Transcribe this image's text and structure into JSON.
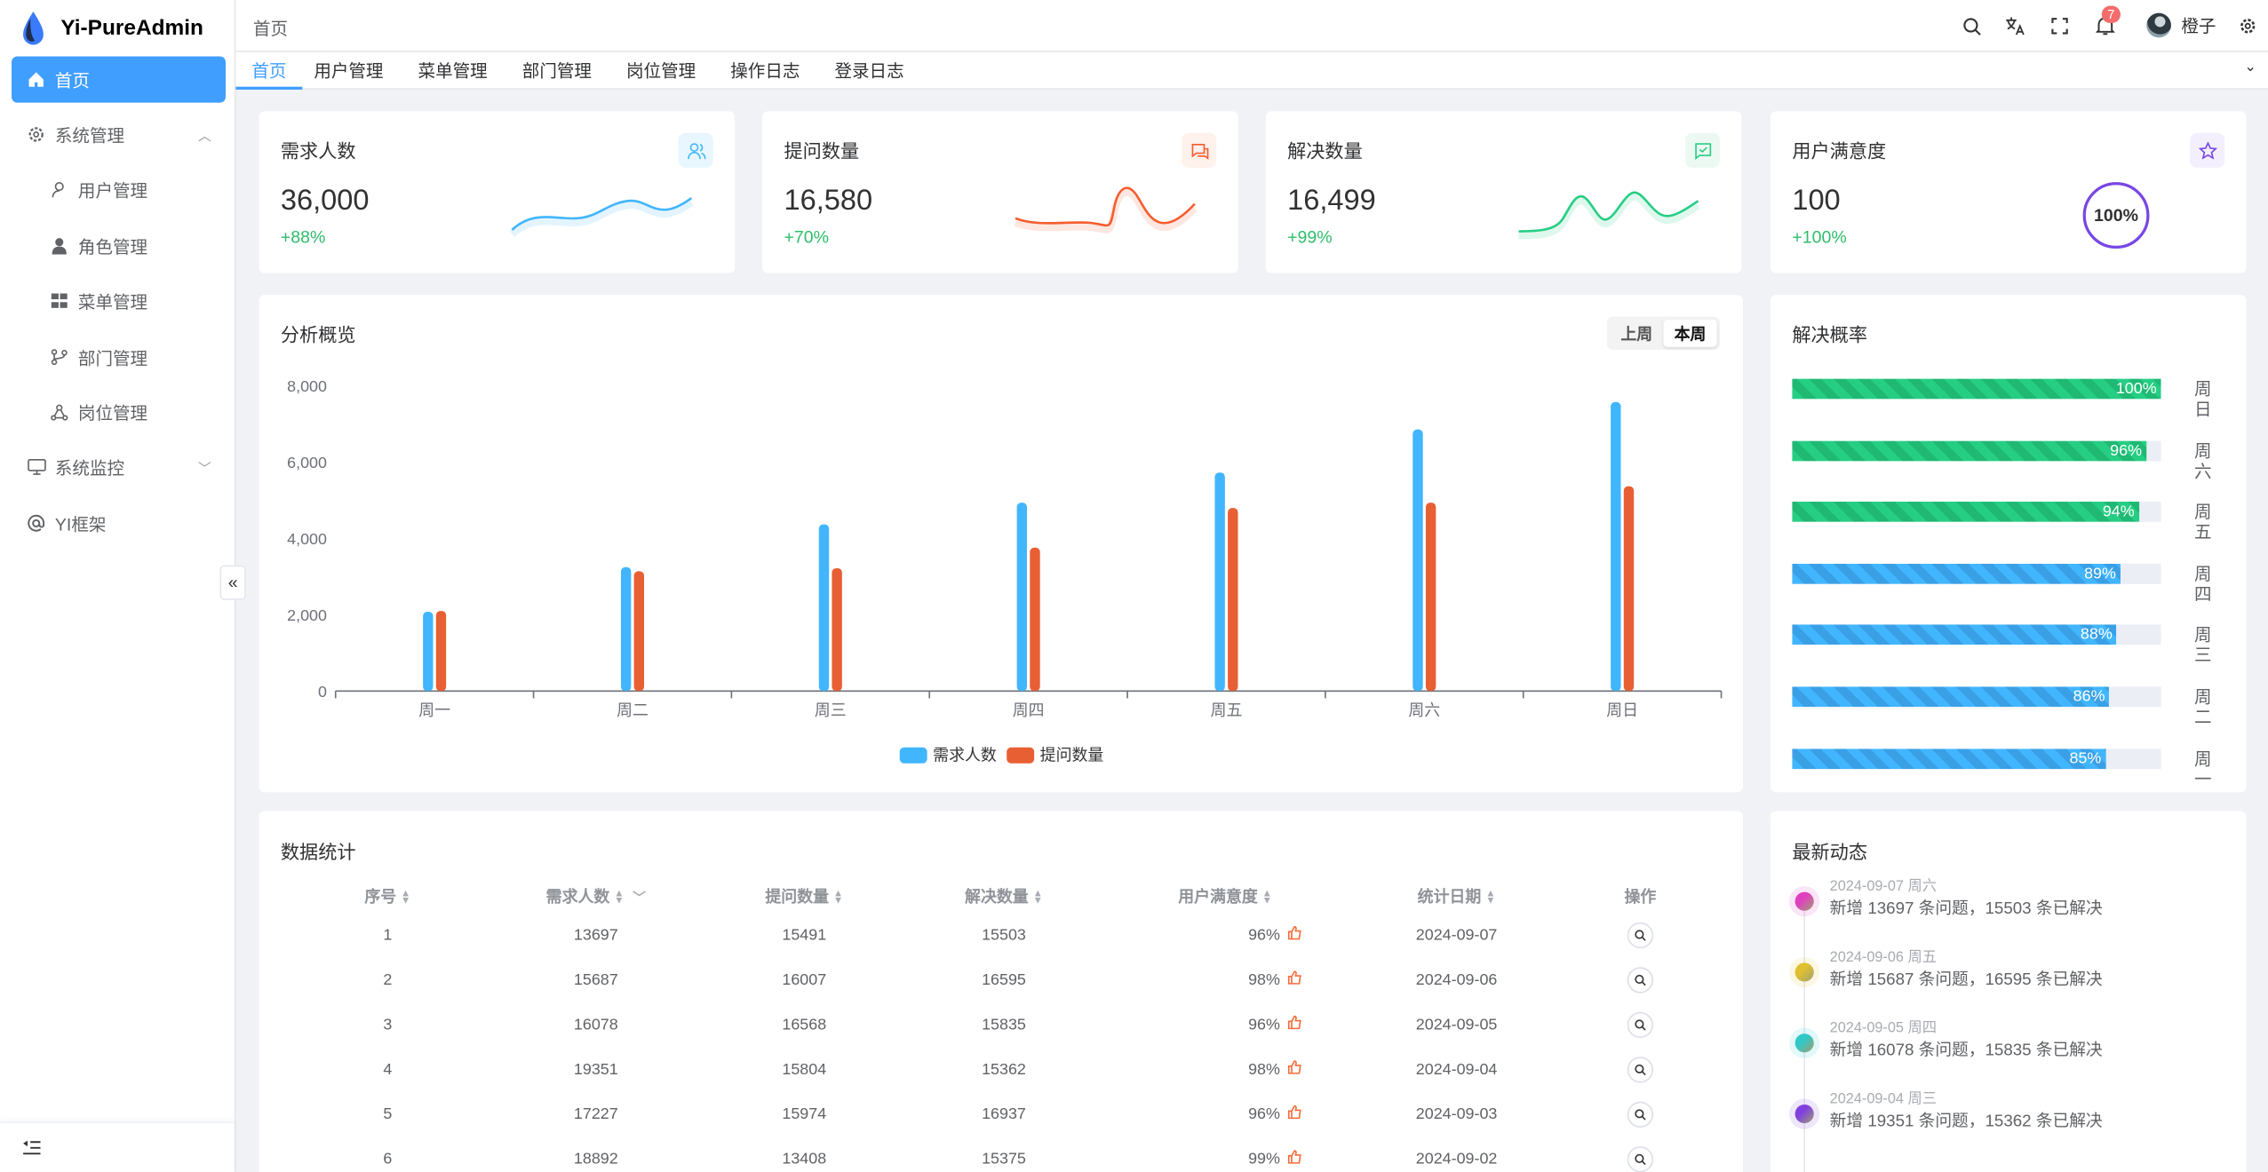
{
  "app": {
    "title": "Yi-PureAdmin"
  },
  "sidebar": {
    "items": [
      {
        "label": "首页",
        "icon": "home-icon",
        "active": true
      },
      {
        "label": "系统管理",
        "icon": "gear-icon",
        "expanded": true
      },
      {
        "label": "用户管理",
        "icon": "user-icon"
      },
      {
        "label": "角色管理",
        "icon": "role-icon"
      },
      {
        "label": "菜单管理",
        "icon": "grid-icon"
      },
      {
        "label": "部门管理",
        "icon": "branch-icon"
      },
      {
        "label": "岗位管理",
        "icon": "nodes-icon"
      },
      {
        "label": "系统监控",
        "icon": "monitor-icon",
        "expanded": false
      },
      {
        "label": "YI框架",
        "icon": "at-icon"
      }
    ],
    "collapse_glyph": "«"
  },
  "header": {
    "breadcrumb": "首页",
    "notifications": "7",
    "user_name": "橙子"
  },
  "tabs": [
    "首页",
    "用户管理",
    "菜单管理",
    "部门管理",
    "岗位管理",
    "操作日志",
    "登录日志"
  ],
  "stats": [
    {
      "title": "需求人数",
      "value": "36,000",
      "change": "+88%",
      "color": "#41b6ff",
      "bg": "#e8f6ff",
      "icon": "users-icon"
    },
    {
      "title": "提问数量",
      "value": "16,580",
      "change": "+70%",
      "color": "#f55d2f",
      "bg": "#fff1ec",
      "icon": "message-icon"
    },
    {
      "title": "解决数量",
      "value": "16,499",
      "change": "+99%",
      "color": "#26ce83",
      "bg": "#ecf9f2",
      "icon": "check-message-icon"
    },
    {
      "title": "用户满意度",
      "value": "100",
      "change": "+100%",
      "color": "#7846e5",
      "bg": "#f3efff",
      "icon": "star-icon",
      "ring": "100%",
      "ring_value": 100
    }
  ],
  "overview": {
    "title": "分析概览",
    "toggle": [
      "上周",
      "本周"
    ],
    "active_toggle": 1
  },
  "chart_data": {
    "type": "bar",
    "categories": [
      "周一",
      "周二",
      "周三",
      "周四",
      "周五",
      "周六",
      "周日"
    ],
    "series": [
      {
        "name": "需求人数",
        "color": "#41b6ff",
        "values": [
          2080,
          3250,
          4370,
          4940,
          5730,
          6860,
          7580
        ]
      },
      {
        "name": "提问数量",
        "color": "#e85f33",
        "values": [
          2100,
          3140,
          3220,
          3760,
          4800,
          4940,
          5370
        ]
      }
    ],
    "yticks": [
      "0",
      "2,000",
      "4,000",
      "6,000",
      "8,000"
    ],
    "ylim": [
      0,
      8000
    ],
    "legend": "bottom",
    "grid": false
  },
  "resolve_rate": {
    "title": "解决概率",
    "rows": [
      {
        "day": "周日",
        "percent": 100,
        "label": "100%",
        "color": "#26ce83"
      },
      {
        "day": "周六",
        "percent": 96,
        "label": "96%",
        "color": "#26ce83"
      },
      {
        "day": "周五",
        "percent": 94,
        "label": "94%",
        "color": "#26ce83"
      },
      {
        "day": "周四",
        "percent": 89,
        "label": "89%",
        "color": "#41b6ff"
      },
      {
        "day": "周三",
        "percent": 88,
        "label": "88%",
        "color": "#41b6ff"
      },
      {
        "day": "周二",
        "percent": 86,
        "label": "86%",
        "color": "#41b6ff"
      },
      {
        "day": "周一",
        "percent": 85,
        "label": "85%",
        "color": "#41b6ff"
      }
    ]
  },
  "table": {
    "title": "数据统计",
    "columns": [
      "序号",
      "需求人数",
      "提问数量",
      "解决数量",
      "用户满意度",
      "统计日期",
      "操作"
    ],
    "rows": [
      [
        "1",
        "13697",
        "15491",
        "15503",
        "96%",
        "2024-09-07"
      ],
      [
        "2",
        "15687",
        "16007",
        "16595",
        "98%",
        "2024-09-06"
      ],
      [
        "3",
        "16078",
        "16568",
        "15835",
        "96%",
        "2024-09-05"
      ],
      [
        "4",
        "19351",
        "15804",
        "15362",
        "98%",
        "2024-09-04"
      ],
      [
        "5",
        "17227",
        "15974",
        "16937",
        "96%",
        "2024-09-03"
      ],
      [
        "6",
        "18892",
        "13408",
        "15375",
        "99%",
        "2024-09-02"
      ]
    ]
  },
  "timeline": {
    "title": "最新动态",
    "items": [
      {
        "date": "2024-09-07 周六",
        "text": "新增 13697 条问题，15503 条已解决",
        "color": "#e040c0"
      },
      {
        "date": "2024-09-06 周五",
        "text": "新增 15687 条问题，16595 条已解决",
        "color": "#e0c030"
      },
      {
        "date": "2024-09-05 周四",
        "text": "新增 16078 条问题，15835 条已解决",
        "color": "#30c8c8"
      },
      {
        "date": "2024-09-04 周三",
        "text": "新增 19351 条问题，15362 条已解决",
        "color": "#8040e0"
      }
    ]
  }
}
